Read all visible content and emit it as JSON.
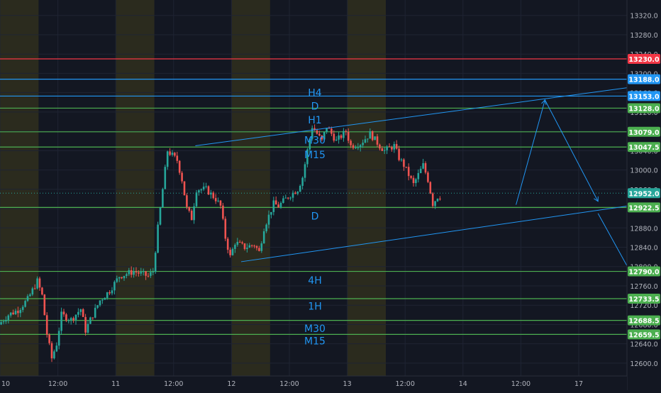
{
  "chart_data": {
    "type": "candlestick",
    "title": "",
    "xlabel": "",
    "ylabel": "",
    "ylim": [
      12580,
      13350
    ],
    "y_ticks": [
      12600,
      12640,
      12680,
      12720,
      12760,
      12800,
      12840,
      12880,
      12920,
      12960,
      13000,
      13040,
      13080,
      13120,
      13160,
      13200,
      13240,
      13280,
      13320
    ],
    "y_tick_labels": [
      "12600.0",
      "12640.0",
      "12680.0",
      "12720.0",
      "12760.0",
      "12800.0",
      "12840.0",
      "12880.0",
      "12920.0",
      "12960.0",
      "13000.0",
      "13040.0",
      "13080.0",
      "13120.0",
      "13160.0",
      "13200.0",
      "13240.0",
      "13280.0",
      "13320.0"
    ],
    "x_range_hours": [
      0,
      182
    ],
    "x_ticks": [
      {
        "label": "10",
        "hour": 0
      },
      {
        "label": "12:00",
        "hour": 12
      },
      {
        "label": "11",
        "hour": 24
      },
      {
        "label": "12:00",
        "hour": 36
      },
      {
        "label": "12",
        "hour": 48
      },
      {
        "label": "12:00",
        "hour": 60
      },
      {
        "label": "13",
        "hour": 72
      },
      {
        "label": "12:00",
        "hour": 84
      },
      {
        "label": "14",
        "hour": 96
      },
      {
        "label": "12:00",
        "hour": 108
      },
      {
        "label": "17",
        "hour": 120
      },
      {
        "label": "12:00",
        "hour": 132
      }
    ],
    "session_bands": [
      [
        0,
        8
      ],
      [
        24,
        32
      ],
      [
        48,
        56
      ],
      [
        72,
        80
      ]
    ],
    "price_series": [
      [
        0,
        12680
      ],
      [
        2,
        12700
      ],
      [
        4,
        12710
      ],
      [
        6,
        12732
      ],
      [
        8,
        12770
      ],
      [
        9,
        12740
      ],
      [
        10,
        12660
      ],
      [
        11,
        12610
      ],
      [
        12,
        12640
      ],
      [
        13,
        12700
      ],
      [
        15,
        12690
      ],
      [
        17,
        12712
      ],
      [
        18,
        12668
      ],
      [
        19,
        12690
      ],
      [
        21,
        12730
      ],
      [
        23,
        12750
      ],
      [
        25,
        12780
      ],
      [
        28,
        12790
      ],
      [
        31,
        12780
      ],
      [
        32,
        12790
      ],
      [
        33,
        12880
      ],
      [
        34,
        12960
      ],
      [
        35,
        13040
      ],
      [
        36,
        13030
      ],
      [
        37,
        13020
      ],
      [
        38,
        12980
      ],
      [
        39,
        12920
      ],
      [
        40,
        12900
      ],
      [
        41,
        12960
      ],
      [
        43,
        12960
      ],
      [
        45,
        12940
      ],
      [
        46,
        12925
      ],
      [
        47,
        12860
      ],
      [
        48,
        12820
      ],
      [
        49,
        12850
      ],
      [
        51,
        12840
      ],
      [
        53,
        12845
      ],
      [
        54,
        12830
      ],
      [
        55,
        12880
      ],
      [
        57,
        12930
      ],
      [
        58,
        12925
      ],
      [
        60,
        12945
      ],
      [
        62,
        12960
      ],
      [
        63,
        12985
      ],
      [
        64,
        13040
      ],
      [
        65,
        13090
      ],
      [
        66,
        13075
      ],
      [
        67,
        13060
      ],
      [
        68,
        13090
      ],
      [
        70,
        13060
      ],
      [
        72,
        13080
      ],
      [
        73,
        13050
      ],
      [
        75,
        13055
      ],
      [
        77,
        13075
      ],
      [
        79,
        13050
      ],
      [
        80,
        13040
      ],
      [
        81,
        13045
      ],
      [
        82,
        13050
      ],
      [
        83,
        13025
      ],
      [
        84,
        13010
      ],
      [
        85,
        12990
      ],
      [
        86,
        12970
      ],
      [
        87,
        12990
      ],
      [
        88,
        13010
      ],
      [
        89,
        12980
      ],
      [
        90,
        12930
      ],
      [
        91,
        12945
      ]
    ],
    "level_lines": [
      {
        "price": 13230.0,
        "label": "13230.0",
        "color": "#f23645",
        "badge": "#f23645"
      },
      {
        "price": 13188.0,
        "label": "13188.0",
        "color": "#2196f3",
        "badge": "#2196f3"
      },
      {
        "price": 13153.0,
        "label": "13153.0",
        "color": "#2196f3",
        "badge": "#2196f3"
      },
      {
        "price": 13128.0,
        "label": "13128.0",
        "color": "#4caf50",
        "badge": "#4caf50"
      },
      {
        "price": 13079.0,
        "label": "13079.0",
        "color": "#4caf50",
        "badge": "#4caf50"
      },
      {
        "price": 13047.5,
        "label": "13047.5",
        "color": "#4caf50",
        "badge": "#4caf50"
      },
      {
        "price": 12922.5,
        "label": "12922.5",
        "color": "#4caf50",
        "badge": "#4caf50"
      },
      {
        "price": 12790.0,
        "label": "12790.0",
        "color": "#4caf50",
        "badge": "#4caf50"
      },
      {
        "price": 12733.5,
        "label": "12733.5",
        "color": "#4caf50",
        "badge": "#4caf50"
      },
      {
        "price": 12688.5,
        "label": "12688.5",
        "color": "#4caf50",
        "badge": "#4caf50"
      },
      {
        "price": 12659.5,
        "label": "12659.5",
        "color": "#4caf50",
        "badge": "#4caf50"
      }
    ],
    "current_price": {
      "price": 12952.0,
      "label": "12952.0",
      "color": "#26a69a"
    },
    "level_annotations": [
      {
        "text": "H4",
        "price": 13160
      },
      {
        "text": "D",
        "price": 13132
      },
      {
        "text": "H1",
        "price": 13104
      },
      {
        "text": "M30",
        "price": 13062
      },
      {
        "text": "M15",
        "price": 13032
      },
      {
        "text": "D",
        "price": 12905
      },
      {
        "text": "4H",
        "price": 12772
      },
      {
        "text": "1H",
        "price": 12718
      },
      {
        "text": "M30",
        "price": 12672
      },
      {
        "text": "M15",
        "price": 12646
      }
    ],
    "trend_lines": [
      {
        "from": [
          40.5,
          13050
        ],
        "to": [
          182,
          13240
        ]
      },
      {
        "from": [
          50,
          12810
        ],
        "to": [
          182,
          13000
        ]
      }
    ],
    "projection_path": [
      [
        107,
        12928
      ],
      [
        113,
        13145
      ],
      [
        124,
        12935
      ]
    ],
    "projection_down": [
      [
        124,
        12910
      ],
      [
        142,
        12585
      ]
    ],
    "question_mark": {
      "text": "?",
      "price": 12890,
      "hour": 131
    },
    "colors": {
      "background": "#131722",
      "band": "#2b2b1e",
      "grid": "#1f2433",
      "axis_text": "#b2b5be",
      "up": "#26a69a",
      "down": "#ef5350",
      "annotation": "#2196f3",
      "badge_text": "#ffffff"
    }
  }
}
